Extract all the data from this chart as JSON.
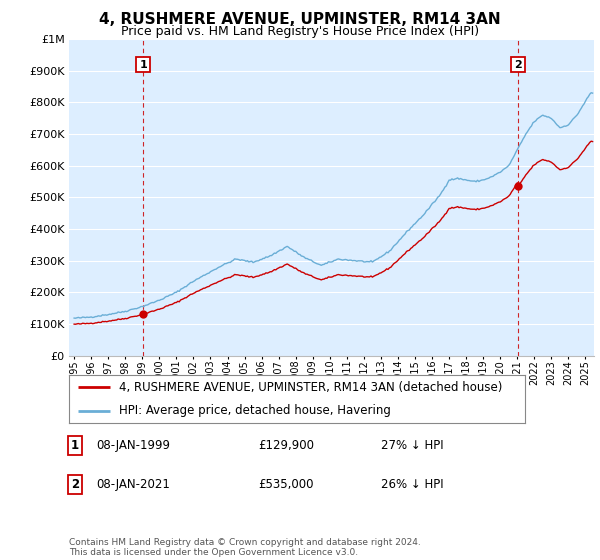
{
  "title": "4, RUSHMERE AVENUE, UPMINSTER, RM14 3AN",
  "subtitle": "Price paid vs. HM Land Registry's House Price Index (HPI)",
  "footer": "Contains HM Land Registry data © Crown copyright and database right 2024.\nThis data is licensed under the Open Government Licence v3.0.",
  "legend_line1": "4, RUSHMERE AVENUE, UPMINSTER, RM14 3AN (detached house)",
  "legend_line2": "HPI: Average price, detached house, Havering",
  "annotation1": {
    "num": "1",
    "date": "08-JAN-1999",
    "price": "£129,900",
    "info": "27% ↓ HPI"
  },
  "annotation2": {
    "num": "2",
    "date": "08-JAN-2021",
    "price": "£535,000",
    "info": "26% ↓ HPI"
  },
  "sale1_year": 1999.05,
  "sale1_price": 129900,
  "sale2_year": 2021.05,
  "sale2_price": 535000,
  "hpi_color": "#6aaed6",
  "price_color": "#cc0000",
  "vline_color": "#cc0000",
  "plot_bg_color": "#ddeeff",
  "background_color": "#ffffff",
  "grid_color": "#ffffff",
  "ylim": [
    0,
    1000000
  ],
  "xlim": [
    1994.7,
    2025.5
  ]
}
